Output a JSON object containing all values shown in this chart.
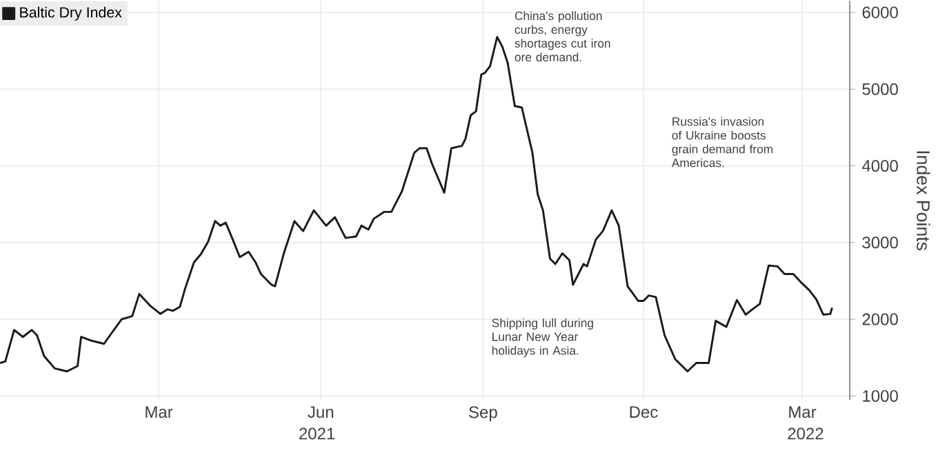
{
  "chart_data": {
    "type": "line",
    "ylabel": "Index Points",
    "x": [
      "2020-12-01",
      "2020-12-04",
      "2020-12-09",
      "2020-12-14",
      "2020-12-19",
      "2020-12-22",
      "2020-12-26",
      "2021-01-01",
      "2021-01-08",
      "2021-01-14",
      "2021-01-16",
      "2021-01-22",
      "2021-01-29",
      "2021-02-02",
      "2021-02-08",
      "2021-02-14",
      "2021-02-18",
      "2021-02-24",
      "2021-03-02",
      "2021-03-06",
      "2021-03-09",
      "2021-03-13",
      "2021-03-16",
      "2021-03-21",
      "2021-03-25",
      "2021-03-29",
      "2021-04-02",
      "2021-04-05",
      "2021-04-08",
      "2021-04-12",
      "2021-04-16",
      "2021-04-21",
      "2021-04-25",
      "2021-04-28",
      "2021-05-04",
      "2021-05-06",
      "2021-05-11",
      "2021-05-17",
      "2021-05-22",
      "2021-05-28",
      "2021-06-04",
      "2021-06-09",
      "2021-06-15",
      "2021-06-21",
      "2021-06-24",
      "2021-06-28",
      "2021-07-01",
      "2021-07-07",
      "2021-07-11",
      "2021-07-17",
      "2021-07-24",
      "2021-07-27",
      "2021-07-31",
      "2021-08-03",
      "2021-08-10",
      "2021-08-14",
      "2021-08-20",
      "2021-08-22",
      "2021-08-25",
      "2021-08-28",
      "2021-08-31",
      "2021-09-02",
      "2021-09-05",
      "2021-09-09",
      "2021-09-12",
      "2021-09-15",
      "2021-09-19",
      "2021-09-23",
      "2021-09-29",
      "2021-10-02",
      "2021-10-05",
      "2021-10-09",
      "2021-10-12",
      "2021-10-16",
      "2021-10-20",
      "2021-10-22",
      "2021-10-28",
      "2021-10-30",
      "2021-11-04",
      "2021-11-08",
      "2021-11-13",
      "2021-11-17",
      "2021-11-22",
      "2021-11-28",
      "2021-12-01",
      "2021-12-04",
      "2021-12-08",
      "2021-12-13",
      "2021-12-19",
      "2021-12-26",
      "2021-12-31",
      "2022-01-07",
      "2022-01-11",
      "2022-01-17",
      "2022-01-23",
      "2022-01-28",
      "2022-02-02",
      "2022-02-05",
      "2022-02-10",
      "2022-02-15",
      "2022-02-19",
      "2022-02-24",
      "2022-02-28",
      "2022-03-05",
      "2022-03-09",
      "2022-03-13",
      "2022-03-17",
      "2022-03-18"
    ],
    "series": [
      {
        "name": "Baltic Dry Index",
        "color": "#1a1a1a",
        "values": [
          1430,
          1450,
          1860,
          1770,
          1860,
          1790,
          1520,
          1360,
          1320,
          1390,
          1770,
          1720,
          1680,
          1810,
          2000,
          2040,
          2330,
          2180,
          2070,
          2130,
          2110,
          2160,
          2400,
          2740,
          2850,
          3010,
          3280,
          3220,
          3260,
          3040,
          2810,
          2880,
          2740,
          2590,
          2450,
          2430,
          2860,
          3280,
          3150,
          3420,
          3220,
          3330,
          3060,
          3080,
          3220,
          3170,
          3310,
          3400,
          3400,
          3670,
          4170,
          4230,
          4230,
          4030,
          3650,
          4230,
          4260,
          4350,
          4660,
          4710,
          5190,
          5210,
          5300,
          5680,
          5550,
          5340,
          4780,
          4760,
          4170,
          3630,
          3420,
          2790,
          2720,
          2860,
          2770,
          2450,
          2720,
          2690,
          3040,
          3150,
          3420,
          3220,
          2430,
          2240,
          2240,
          2310,
          2290,
          1790,
          1480,
          1320,
          1430,
          1430,
          1980,
          1900,
          2250,
          2060,
          2150,
          2200,
          2700,
          2690,
          2590,
          2590,
          2490,
          2380,
          2260,
          2060,
          2070,
          2150
        ]
      }
    ],
    "xlim": [
      "2020-12-01",
      "2022-03-28"
    ],
    "xticks": [
      {
        "value": "2021-03-01",
        "label": "Mar"
      },
      {
        "value": "2021-06-01",
        "label": "Jun"
      },
      {
        "value": "2021-09-01",
        "label": "Sep"
      },
      {
        "value": "2021-12-01",
        "label": "Dec"
      },
      {
        "value": "2022-03-01",
        "label": "Mar"
      }
    ],
    "ylim": [
      950,
      6150
    ],
    "yticks": [
      1000,
      2000,
      3000,
      4000,
      5000,
      6000
    ],
    "grid": true,
    "legend": "top left",
    "annotations": [
      "China's pollution curbs, energy shortages cut iron ore demand.",
      "Shipping lull during Lunar New Year holidays in Asia.",
      "Russia's invasion of Ukraine boosts grain demand from Americas.",
      "2021",
      "2022"
    ]
  }
}
